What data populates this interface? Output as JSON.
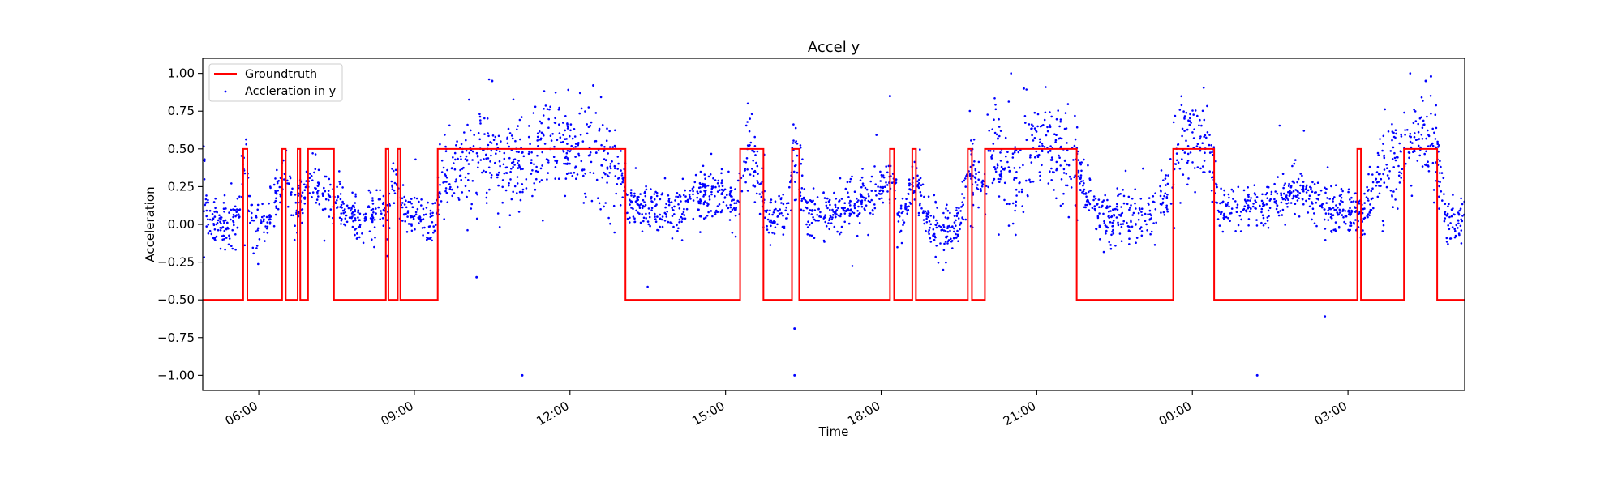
{
  "chart_data": {
    "type": "line",
    "title": "Accel y",
    "xlabel": "Time",
    "ylabel": "Acceleration",
    "x_axis": "time",
    "xlim": [
      "04:55",
      "05:15 (+1 day)"
    ],
    "ylim": [
      -1.1,
      1.1
    ],
    "x_ticks": [
      "06:00",
      "09:00",
      "12:00",
      "15:00",
      "18:00",
      "21:00",
      "00:00",
      "03:00"
    ],
    "y_ticks": [
      "1.00",
      "0.75",
      "0.50",
      "0.25",
      "0.00",
      "−0.25",
      "−0.50",
      "−0.75",
      "−1.00"
    ],
    "grid": false,
    "legend_position": "top-left",
    "legend": [
      "Groundtruth",
      "Accleration in y"
    ],
    "series": [
      {
        "name": "Groundtruth",
        "type": "line",
        "color": "#ff0000",
        "note_units": "x = hours after 00:00 of first day",
        "segments": [
          {
            "start": 4.92,
            "end": 5.7,
            "value": -0.5
          },
          {
            "start": 5.7,
            "end": 5.78,
            "value": 0.5
          },
          {
            "start": 5.78,
            "end": 6.45,
            "value": -0.5
          },
          {
            "start": 6.45,
            "end": 6.52,
            "value": 0.5
          },
          {
            "start": 6.52,
            "end": 6.75,
            "value": -0.5
          },
          {
            "start": 6.75,
            "end": 6.8,
            "value": 0.5
          },
          {
            "start": 6.8,
            "end": 6.95,
            "value": -0.5
          },
          {
            "start": 6.95,
            "end": 7.45,
            "value": 0.5
          },
          {
            "start": 7.45,
            "end": 8.45,
            "value": -0.5
          },
          {
            "start": 8.45,
            "end": 8.5,
            "value": 0.5
          },
          {
            "start": 8.5,
            "end": 8.68,
            "value": -0.5
          },
          {
            "start": 8.68,
            "end": 8.73,
            "value": 0.5
          },
          {
            "start": 8.73,
            "end": 9.45,
            "value": -0.5
          },
          {
            "start": 9.45,
            "end": 13.07,
            "value": 0.5
          },
          {
            "start": 13.07,
            "end": 15.28,
            "value": -0.5
          },
          {
            "start": 15.28,
            "end": 15.73,
            "value": 0.5
          },
          {
            "start": 15.73,
            "end": 16.28,
            "value": -0.5
          },
          {
            "start": 16.28,
            "end": 16.42,
            "value": 0.5
          },
          {
            "start": 16.42,
            "end": 18.17,
            "value": -0.5
          },
          {
            "start": 18.17,
            "end": 18.25,
            "value": 0.5
          },
          {
            "start": 18.25,
            "end": 18.6,
            "value": -0.5
          },
          {
            "start": 18.6,
            "end": 18.67,
            "value": 0.5
          },
          {
            "start": 18.67,
            "end": 19.67,
            "value": -0.5
          },
          {
            "start": 19.67,
            "end": 19.75,
            "value": 0.5
          },
          {
            "start": 19.75,
            "end": 20.0,
            "value": -0.5
          },
          {
            "start": 20.0,
            "end": 21.77,
            "value": 0.5
          },
          {
            "start": 21.77,
            "end": 23.63,
            "value": -0.5
          },
          {
            "start": 23.63,
            "end": 24.42,
            "value": 0.5
          },
          {
            "start": 24.42,
            "end": 27.18,
            "value": -0.5
          },
          {
            "start": 27.18,
            "end": 27.25,
            "value": 0.5
          },
          {
            "start": 27.25,
            "end": 28.08,
            "value": -0.5
          },
          {
            "start": 28.08,
            "end": 28.72,
            "value": 0.5
          },
          {
            "start": 28.72,
            "end": 29.25,
            "value": -0.5
          }
        ]
      },
      {
        "name": "Accleration in y",
        "type": "scatter",
        "color": "#0000ff",
        "trend": [
          [
            4.92,
            0.55
          ],
          [
            5.0,
            0.05
          ],
          [
            5.3,
            0.0
          ],
          [
            5.6,
            0.02
          ],
          [
            5.75,
            0.45
          ],
          [
            5.9,
            -0.1
          ],
          [
            6.3,
            0.1
          ],
          [
            6.5,
            0.35
          ],
          [
            6.7,
            0.05
          ],
          [
            7.0,
            0.3
          ],
          [
            7.5,
            0.12
          ],
          [
            8.0,
            0.05
          ],
          [
            8.5,
            0.08
          ],
          [
            8.6,
            0.3
          ],
          [
            8.8,
            0.08
          ],
          [
            9.4,
            0.02
          ],
          [
            9.6,
            0.38
          ],
          [
            10.5,
            0.45
          ],
          [
            11.0,
            0.38
          ],
          [
            11.5,
            0.55
          ],
          [
            12.0,
            0.45
          ],
          [
            12.5,
            0.5
          ],
          [
            13.0,
            0.3
          ],
          [
            13.2,
            0.12
          ],
          [
            14.0,
            0.1
          ],
          [
            14.5,
            0.2
          ],
          [
            15.0,
            0.2
          ],
          [
            15.2,
            0.1
          ],
          [
            15.5,
            0.5
          ],
          [
            15.8,
            0.0
          ],
          [
            16.2,
            0.08
          ],
          [
            16.35,
            0.5
          ],
          [
            16.6,
            0.05
          ],
          [
            17.0,
            0.1
          ],
          [
            17.5,
            0.12
          ],
          [
            17.9,
            0.2
          ],
          [
            18.2,
            0.3
          ],
          [
            18.4,
            0.0
          ],
          [
            18.65,
            0.3
          ],
          [
            19.0,
            -0.05
          ],
          [
            19.5,
            0.0
          ],
          [
            19.7,
            0.35
          ],
          [
            19.9,
            0.2
          ],
          [
            20.2,
            0.5
          ],
          [
            20.6,
            0.3
          ],
          [
            21.0,
            0.55
          ],
          [
            21.5,
            0.5
          ],
          [
            21.8,
            0.3
          ],
          [
            22.2,
            0.05
          ],
          [
            23.0,
            0.05
          ],
          [
            23.5,
            0.2
          ],
          [
            23.8,
            0.6
          ],
          [
            24.3,
            0.6
          ],
          [
            24.5,
            0.1
          ],
          [
            25.0,
            0.1
          ],
          [
            25.5,
            0.15
          ],
          [
            26.0,
            0.2
          ],
          [
            26.5,
            0.15
          ],
          [
            27.0,
            0.1
          ],
          [
            27.3,
            0.05
          ],
          [
            27.6,
            0.3
          ],
          [
            28.0,
            0.45
          ],
          [
            28.4,
            0.55
          ],
          [
            28.7,
            0.5
          ],
          [
            28.9,
            0.0
          ],
          [
            29.25,
            0.05
          ]
        ],
        "spread": 0.08,
        "outliers": [
          [
            11.08,
            -1.0
          ],
          [
            16.33,
            -0.69
          ],
          [
            16.33,
            -1.0
          ],
          [
            25.25,
            -1.0
          ],
          [
            10.5,
            0.95
          ],
          [
            12.45,
            0.92
          ],
          [
            18.17,
            0.85
          ],
          [
            20.75,
            0.9
          ],
          [
            28.5,
            0.95
          ],
          [
            28.6,
            0.98
          ],
          [
            10.2,
            -0.35
          ]
        ]
      }
    ]
  }
}
